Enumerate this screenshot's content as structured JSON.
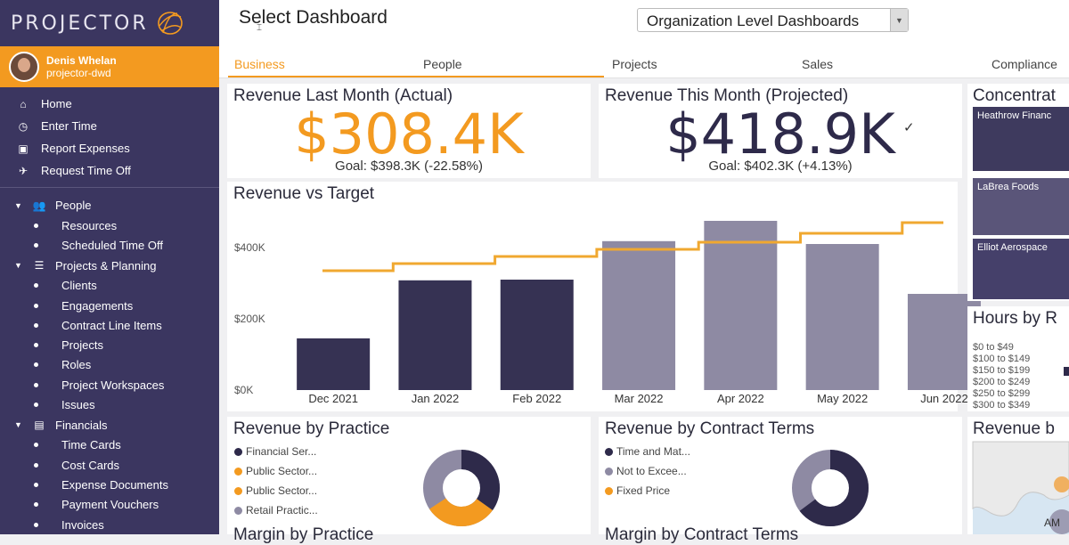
{
  "app": {
    "logo": "PROJECTOR",
    "user_name": "Denis Whelan",
    "user_sub": "projector-dwd"
  },
  "sidebar": {
    "top_items": [
      {
        "label": "Home",
        "icon": "home-icon",
        "glyph": "⌂"
      },
      {
        "label": "Enter Time",
        "icon": "clock-icon",
        "glyph": "◷"
      },
      {
        "label": "Report Expenses",
        "icon": "receipt-icon",
        "glyph": "▣"
      },
      {
        "label": "Request Time Off",
        "icon": "plane-icon",
        "glyph": "✈"
      }
    ],
    "groups": [
      {
        "label": "People",
        "icon": "people-icon",
        "glyph": "👥",
        "items": [
          "Resources",
          "Scheduled Time Off"
        ]
      },
      {
        "label": "Projects & Planning",
        "icon": "list-icon",
        "glyph": "☰",
        "items": [
          "Clients",
          "Engagements",
          "Contract Line Items",
          "Projects",
          "Roles",
          "Project Workspaces",
          "Issues"
        ]
      },
      {
        "label": "Financials",
        "icon": "money-icon",
        "glyph": "▤",
        "items": [
          "Time Cards",
          "Cost Cards",
          "Expense Documents",
          "Payment Vouchers",
          "Invoices"
        ]
      }
    ]
  },
  "header": {
    "title": "Select Dashboard",
    "dashboard_select": "Organization Level Dashboards"
  },
  "tabs": [
    "Business",
    "People",
    "Projects",
    "Sales",
    "Compliance"
  ],
  "kpis": {
    "last_month": {
      "title": "Revenue Last Month (Actual)",
      "value": "$308.4K",
      "goal": "Goal: $398.3K (-22.58%)",
      "color": "#f39a20"
    },
    "this_month": {
      "title": "Revenue This Month (Projected)",
      "value": "$418.9K",
      "goal": "Goal: $402.3K (+4.13%)",
      "color": "#2e2a4a"
    }
  },
  "revenue_vs_target": {
    "title": "Revenue vs Target",
    "colors": {
      "actual": "#363253",
      "projected": "#8e8aa3",
      "target": "#f0a830"
    }
  },
  "chart_data": {
    "type": "bar",
    "title": "Revenue vs Target",
    "categories": [
      "Dec 2021",
      "Jan 2022",
      "Feb 2022",
      "Mar 2022",
      "Apr 2022",
      "May 2022",
      "Jun 2022"
    ],
    "series": [
      {
        "values": [
          145,
          308,
          310,
          418,
          475,
          410,
          270
        ]
      },
      {
        "values": [
          335,
          355,
          375,
          395,
          415,
          440,
          470
        ]
      }
    ],
    "y_ticks": [
      "$0K",
      "$200K",
      "$400K"
    ],
    "ylim": [
      0,
      500
    ],
    "grid": false
  },
  "concentration": {
    "title": "Concentrat",
    "items": [
      "Heathrow Financ",
      "LaBrea Foods",
      "Elliot Aerospace"
    ]
  },
  "hours": {
    "title": "Hours by R",
    "labels": [
      "$0 to $49",
      "$100 to $149",
      "$150 to $199",
      "$200 to $249",
      "$250 to $299",
      "$300 to $349"
    ]
  },
  "practice": {
    "title": "Revenue by Practice",
    "legend": [
      {
        "label": "Financial Ser...",
        "color": "#2e2a4a"
      },
      {
        "label": "Public Sector...",
        "color": "#f39a20"
      },
      {
        "label": "Public Sector...",
        "color": "#f39a20"
      },
      {
        "label": "Retail Practic...",
        "color": "#8e8aa3"
      }
    ],
    "footer": "Margin by Practice"
  },
  "contract": {
    "title": "Revenue by Contract Terms",
    "legend": [
      {
        "label": "Time and Mat...",
        "color": "#2e2a4a"
      },
      {
        "label": "Not to Excee...",
        "color": "#8e8aa3"
      },
      {
        "label": "Fixed Price",
        "color": "#f39a20"
      }
    ],
    "footer": "Margin by Contract Terms"
  },
  "map_panel": {
    "title": "Revenue b",
    "map_label": "AM"
  }
}
